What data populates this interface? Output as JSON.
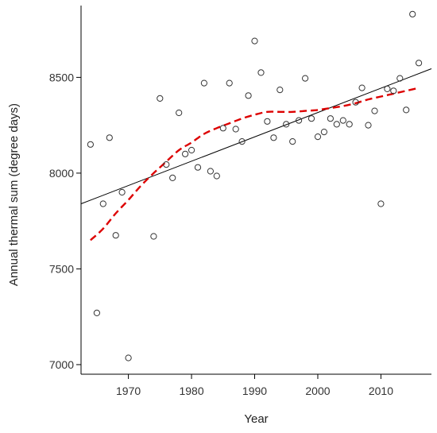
{
  "chart_data": {
    "type": "scatter",
    "title": "",
    "xlabel": "Year",
    "ylabel": "Annual thermal sum (degree days)",
    "xlim": [
      1962.5,
      2018
    ],
    "ylim": [
      6950,
      8875
    ],
    "x_ticks": [
      1970,
      1980,
      1990,
      2000,
      2010
    ],
    "y_ticks": [
      7000,
      7500,
      8000,
      8500
    ],
    "grid": false,
    "legend": "none",
    "colors": {
      "points": "#333333",
      "linear_fit": "#000000",
      "smooth_fit": "#dd0000"
    },
    "series": [
      {
        "type": "scatter",
        "points": [
          [
            1964,
            8150
          ],
          [
            1965,
            7270
          ],
          [
            1966,
            7840
          ],
          [
            1967,
            8185
          ],
          [
            1968,
            7675
          ],
          [
            1969,
            7900
          ],
          [
            1970,
            7035
          ],
          [
            1974,
            7670
          ],
          [
            1975,
            8390
          ],
          [
            1976,
            8045
          ],
          [
            1977,
            7975
          ],
          [
            1978,
            8315
          ],
          [
            1979,
            8100
          ],
          [
            1980,
            8120
          ],
          [
            1981,
            8030
          ],
          [
            1982,
            8470
          ],
          [
            1983,
            8010
          ],
          [
            1984,
            7985
          ],
          [
            1985,
            8235
          ],
          [
            1986,
            8470
          ],
          [
            1987,
            8230
          ],
          [
            1988,
            8165
          ],
          [
            1989,
            8405
          ],
          [
            1990,
            8690
          ],
          [
            1991,
            8525
          ],
          [
            1992,
            8270
          ],
          [
            1993,
            8185
          ],
          [
            1994,
            8435
          ],
          [
            1995,
            8255
          ],
          [
            1996,
            8165
          ],
          [
            1997,
            8275
          ],
          [
            1998,
            8495
          ],
          [
            1999,
            8285
          ],
          [
            2000,
            8190
          ],
          [
            2001,
            8215
          ],
          [
            2002,
            8285
          ],
          [
            2003,
            8255
          ],
          [
            2004,
            8275
          ],
          [
            2005,
            8255
          ],
          [
            2006,
            8370
          ],
          [
            2007,
            8445
          ],
          [
            2008,
            8250
          ],
          [
            2009,
            8325
          ],
          [
            2010,
            7840
          ],
          [
            2011,
            8440
          ],
          [
            2012,
            8430
          ],
          [
            2013,
            8495
          ],
          [
            2014,
            8330
          ],
          [
            2015,
            8830
          ],
          [
            2016,
            8575
          ]
        ]
      },
      {
        "type": "line",
        "style": "solid",
        "points": [
          [
            1962.5,
            7840
          ],
          [
            2018,
            8545
          ]
        ]
      },
      {
        "type": "line",
        "style": "dashed",
        "points": [
          [
            1964,
            7650
          ],
          [
            1966,
            7710
          ],
          [
            1968,
            7790
          ],
          [
            1970,
            7860
          ],
          [
            1972,
            7935
          ],
          [
            1974,
            8000
          ],
          [
            1976,
            8060
          ],
          [
            1978,
            8120
          ],
          [
            1980,
            8160
          ],
          [
            1982,
            8205
          ],
          [
            1984,
            8235
          ],
          [
            1986,
            8260
          ],
          [
            1988,
            8285
          ],
          [
            1990,
            8305
          ],
          [
            1992,
            8320
          ],
          [
            1994,
            8320
          ],
          [
            1996,
            8320
          ],
          [
            1998,
            8325
          ],
          [
            2000,
            8330
          ],
          [
            2002,
            8340
          ],
          [
            2004,
            8350
          ],
          [
            2006,
            8365
          ],
          [
            2008,
            8385
          ],
          [
            2010,
            8400
          ],
          [
            2012,
            8415
          ],
          [
            2014,
            8430
          ],
          [
            2016,
            8445
          ]
        ]
      }
    ]
  }
}
